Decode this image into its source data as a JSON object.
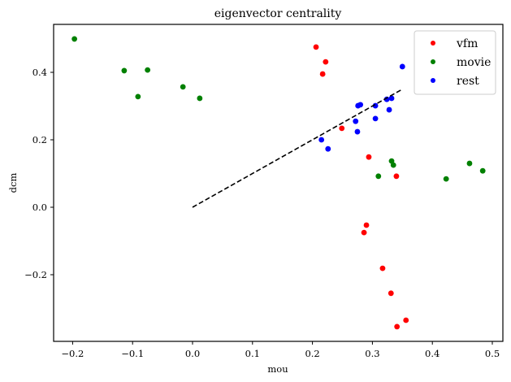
{
  "chart_data": {
    "type": "scatter",
    "title": "eigenvector centrality",
    "xlabel": "mou",
    "ylabel": "dcm",
    "xlim": [
      -0.23,
      0.52
    ],
    "ylim": [
      -0.4,
      0.54
    ],
    "xticks": [
      -0.2,
      -0.1,
      0.0,
      0.1,
      0.2,
      0.3,
      0.4,
      0.5
    ],
    "xtick_labels": [
      "−0.2",
      "−0.1",
      "0.0",
      "0.1",
      "0.2",
      "0.3",
      "0.4",
      "0.5"
    ],
    "yticks": [
      -0.2,
      0.0,
      0.2,
      0.4
    ],
    "ytick_labels": [
      "−0.2",
      "0.0",
      "0.2",
      "0.4"
    ],
    "grid": false,
    "legend_position": "upper right",
    "series": [
      {
        "name": "vfm",
        "color": "#ff0000",
        "points": [
          [
            0.206,
            0.475
          ],
          [
            0.222,
            0.431
          ],
          [
            0.217,
            0.395
          ],
          [
            0.249,
            0.234
          ],
          [
            0.294,
            0.149
          ],
          [
            0.34,
            0.092
          ],
          [
            0.29,
            -0.053
          ],
          [
            0.286,
            -0.075
          ],
          [
            0.317,
            -0.181
          ],
          [
            0.331,
            -0.255
          ],
          [
            0.356,
            -0.335
          ],
          [
            0.341,
            -0.354
          ]
        ]
      },
      {
        "name": "movie",
        "color": "#008000",
        "points": [
          [
            -0.197,
            0.499
          ],
          [
            -0.114,
            0.405
          ],
          [
            -0.075,
            0.407
          ],
          [
            -0.091,
            0.328
          ],
          [
            -0.016,
            0.357
          ],
          [
            0.012,
            0.323
          ],
          [
            0.31,
            0.092
          ],
          [
            0.332,
            0.137
          ],
          [
            0.335,
            0.125
          ],
          [
            0.423,
            0.084
          ],
          [
            0.462,
            0.13
          ],
          [
            0.484,
            0.108
          ]
        ]
      },
      {
        "name": "rest",
        "color": "#0000ff",
        "points": [
          [
            0.35,
            0.417
          ],
          [
            0.215,
            0.2
          ],
          [
            0.226,
            0.173
          ],
          [
            0.275,
            0.224
          ],
          [
            0.272,
            0.255
          ],
          [
            0.276,
            0.301
          ],
          [
            0.28,
            0.304
          ],
          [
            0.305,
            0.301
          ],
          [
            0.305,
            0.263
          ],
          [
            0.324,
            0.32
          ],
          [
            0.332,
            0.323
          ],
          [
            0.328,
            0.289
          ]
        ]
      }
    ],
    "annotations": [
      {
        "type": "dashed-line",
        "color": "#000000",
        "from": [
          0.0,
          0.0
        ],
        "to": [
          0.35,
          0.35
        ]
      }
    ]
  }
}
